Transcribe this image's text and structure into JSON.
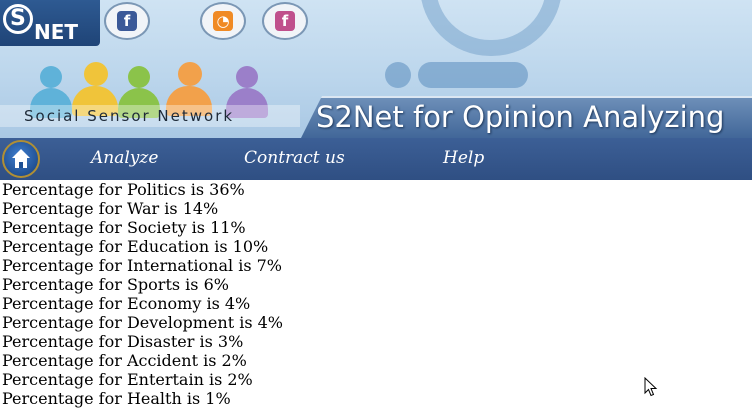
{
  "banner": {
    "logo_text": "NET",
    "network_name": "Social Sensor Network",
    "title": "S2Net for Opinion Analyzing",
    "icons": [
      "facebook-icon",
      "rss-icon",
      "facebook-icon"
    ]
  },
  "nav": {
    "home_icon": "home-icon",
    "items": [
      {
        "label": "Analyze"
      },
      {
        "label": "Contract us"
      },
      {
        "label": "Help"
      }
    ]
  },
  "results": [
    "Percentage for Politics is 36%",
    "Percentage for War is 14%",
    "Percentage for Society is 11%",
    "Percentage for Education is 10%",
    "Percentage for International is 7%",
    "Percentage for Sports is 6%",
    "Percentage for Economy is 4%",
    "Percentage for Development is 4%",
    "Percentage for Disaster is 3%",
    "Percentage for Accident is 2%",
    "Percentage for Entertain is 2%",
    "Percentage for Health is 1%"
  ],
  "colors": {
    "nav_bg": "#34558b",
    "banner_bg": "#bcd6ec",
    "text": "#000000"
  }
}
